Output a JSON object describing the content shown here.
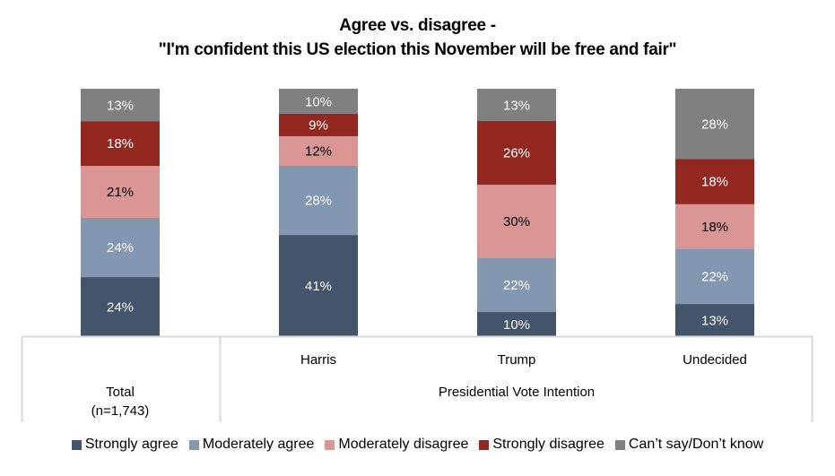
{
  "chart_data": {
    "type": "bar",
    "stacked": true,
    "title": "Agree vs. disagree -",
    "subtitle": "\"I'm confident this US election this November will be free and fair\"",
    "xlabel": "",
    "ylabel": "",
    "ylim": [
      0,
      100
    ],
    "grid": false,
    "categories": [
      "Total",
      "Harris",
      "Trump",
      "Undecided"
    ],
    "category_labels": {
      "total": [
        "Total",
        "(n=1,743)"
      ],
      "group_title": "Presidential Vote Intention"
    },
    "series": [
      {
        "name": "Strongly agree",
        "color": "#44546A",
        "label_color": "#FFFFFF",
        "values": [
          24,
          41,
          10,
          13
        ]
      },
      {
        "name": "Moderately agree",
        "color": "#8497B0",
        "label_color": "#FFFFFF",
        "values": [
          24,
          28,
          22,
          22
        ]
      },
      {
        "name": "Moderately disagree",
        "color": "#DA9694",
        "label_color": "#000000",
        "values": [
          21,
          12,
          30,
          18
        ]
      },
      {
        "name": "Strongly disagree",
        "color": "#922820",
        "label_color": "#FFFFFF",
        "values": [
          18,
          9,
          26,
          18
        ]
      },
      {
        "name": "Can’t say/Don’t know",
        "color": "#808080",
        "label_color": "#FFFFFF",
        "values": [
          13,
          10,
          13,
          28
        ]
      }
    ],
    "value_suffix": "%",
    "legend_position": "bottom"
  }
}
